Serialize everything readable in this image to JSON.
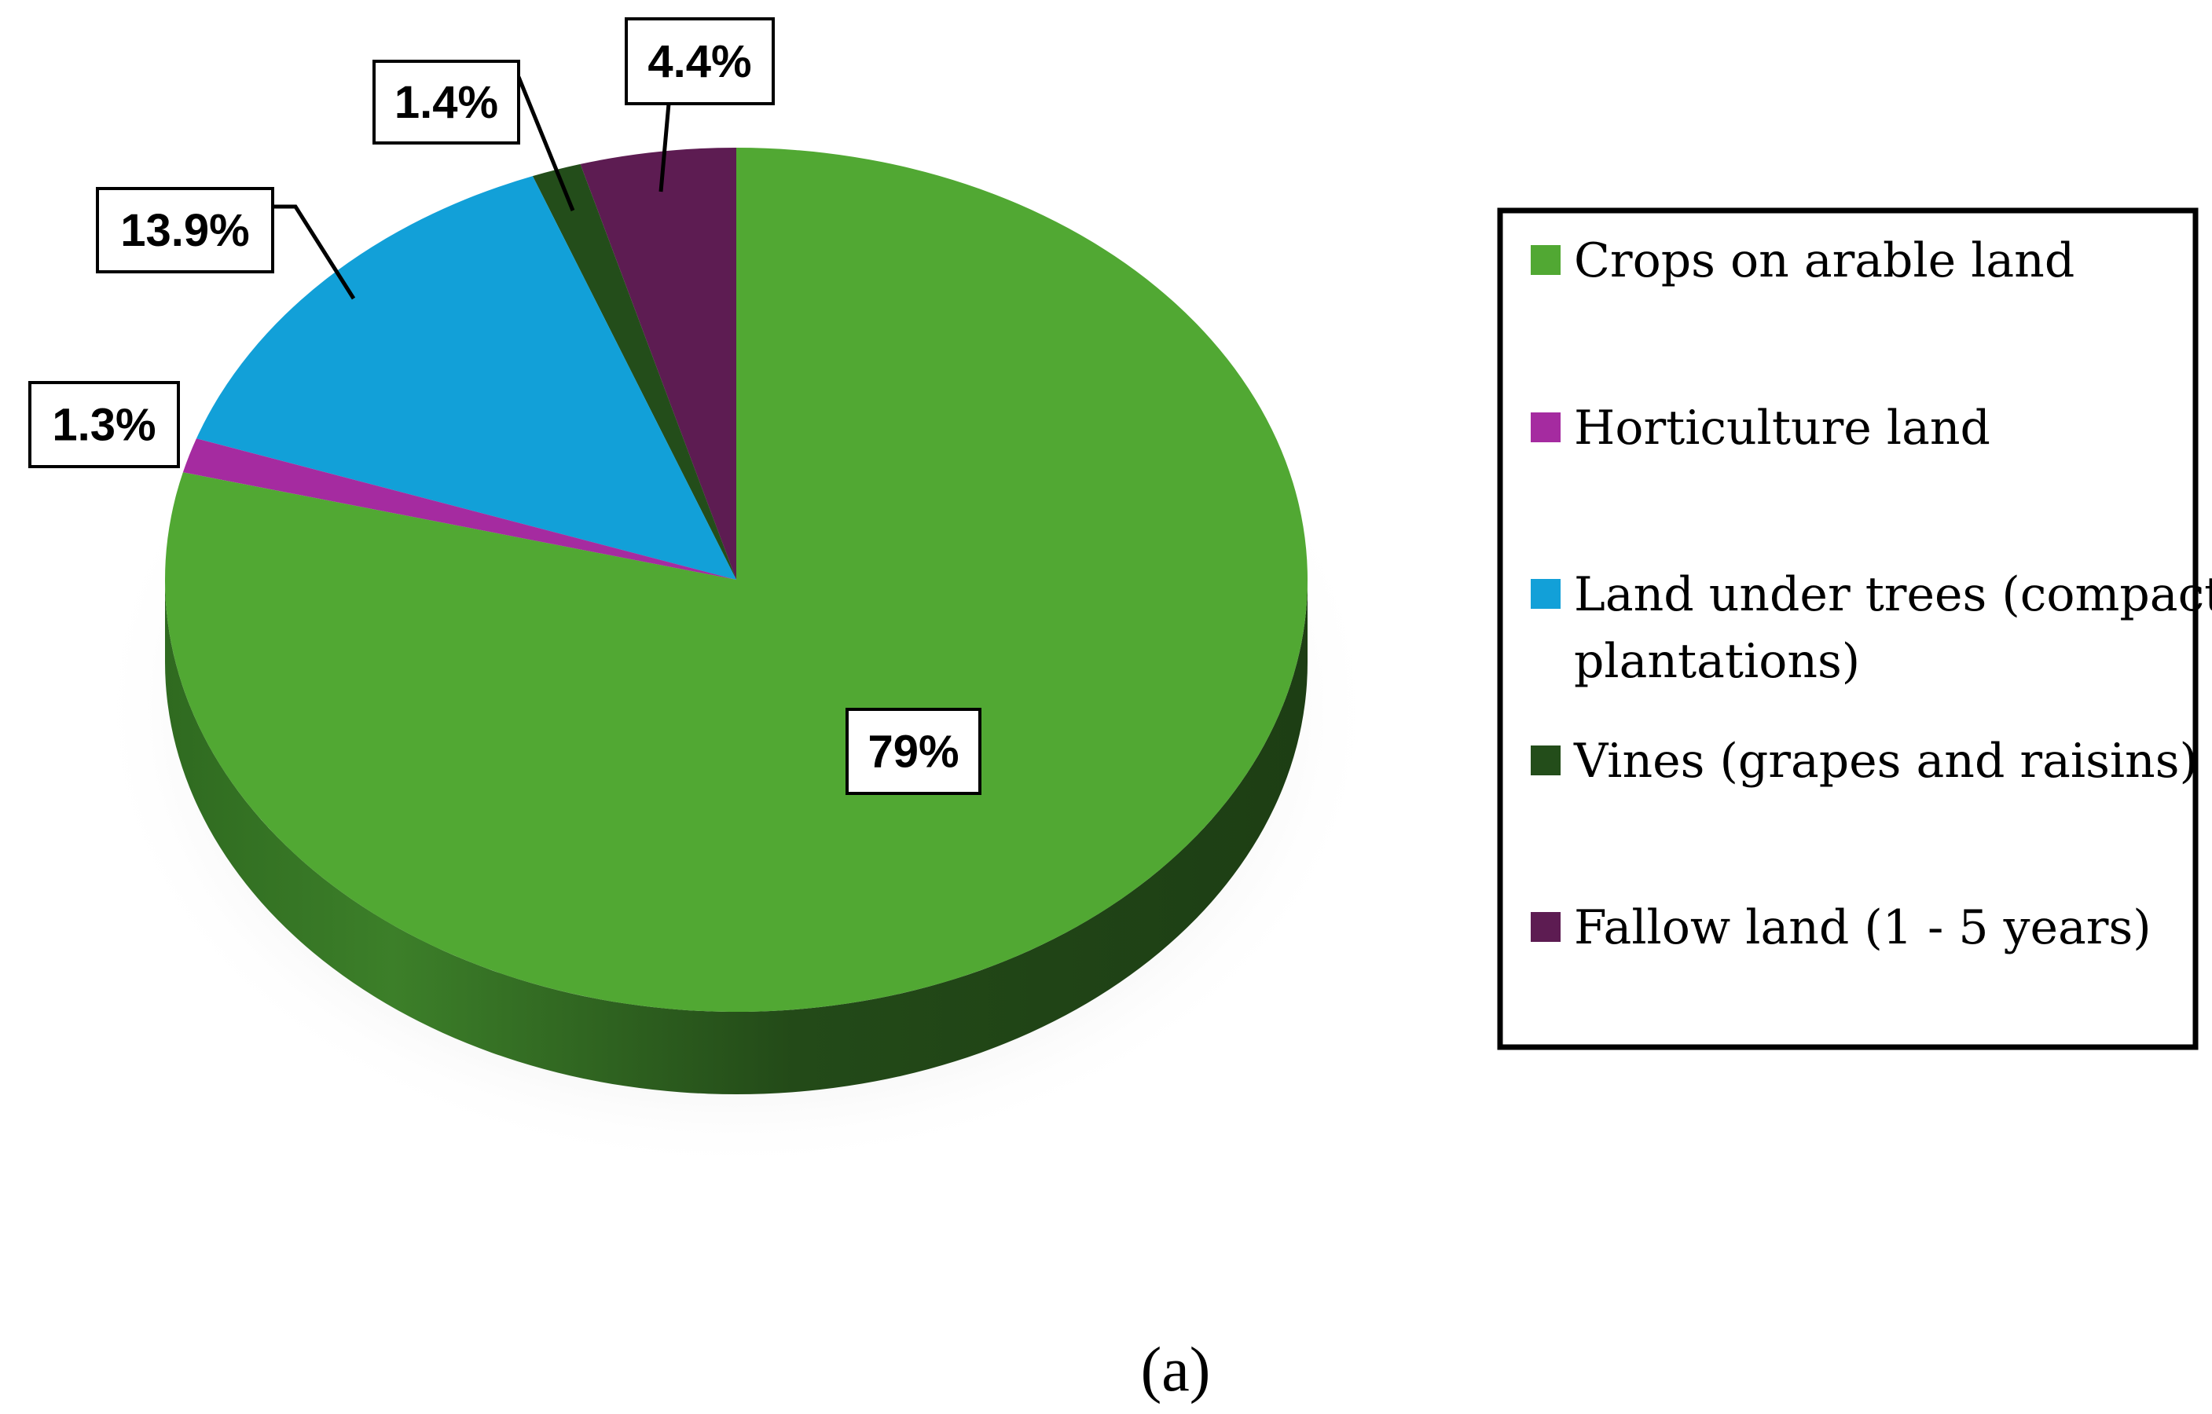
{
  "chart_data": {
    "type": "pie",
    "style": "3d",
    "caption": "(a)",
    "slices": [
      {
        "label": "Fallow land (1 - 5 years)",
        "value": 4.4,
        "value_label": "4.4%",
        "color": "#5d1c52"
      },
      {
        "label": "Vines (grapes and raisins)",
        "value": 1.4,
        "value_label": "1.4%",
        "color": "#234d1a"
      },
      {
        "label": "Land under trees (compact plantations)",
        "value": 13.9,
        "value_label": "13.9%",
        "color": "#12a0d8"
      },
      {
        "label": "Horticulture land",
        "value": 1.3,
        "value_label": "1.3%",
        "color": "#a52ba0"
      },
      {
        "label": "Crops on arable land",
        "value": 79,
        "value_label": "79%",
        "color": "#51a833"
      }
    ],
    "legend": {
      "placement": "right",
      "entries": [
        {
          "label_lines": [
            "Crops on arable land"
          ],
          "color": "#51a833"
        },
        {
          "label_lines": [
            "Horticulture land"
          ],
          "color": "#a52ba0"
        },
        {
          "label_lines": [
            "Land under trees (compact",
            "plantations)"
          ],
          "color": "#12a0d8"
        },
        {
          "label_lines": [
            "Vines (grapes and raisins)"
          ],
          "color": "#234d1a"
        },
        {
          "label_lines": [
            "Fallow land (1 - 5 years)"
          ],
          "color": "#5d1c52"
        }
      ]
    }
  }
}
